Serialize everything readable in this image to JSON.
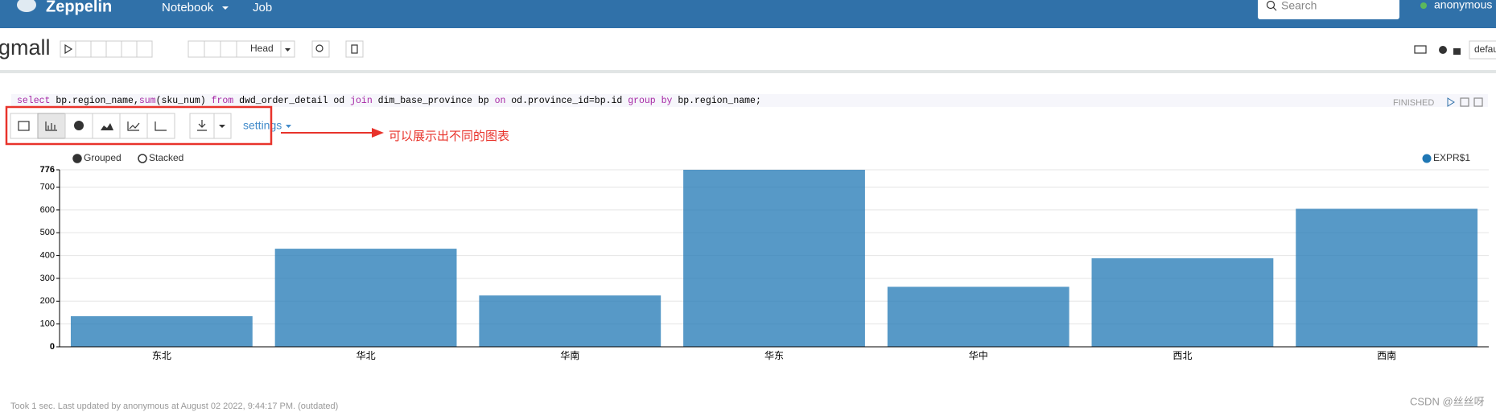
{
  "navbar": {
    "brand": "Zeppelin",
    "menu": [
      "Notebook",
      "Job"
    ],
    "search_placeholder": "Search",
    "user": "anonymous"
  },
  "note": {
    "title": "gmall",
    "head_button": "Head",
    "interpreter": "default"
  },
  "paragraph": {
    "code": [
      "select",
      " bp.region_name,",
      "sum",
      "(sku_num) ",
      "from",
      " dwd_order_detail od ",
      "join",
      " dim_base_province bp ",
      "on",
      " od.province_id=bp.id ",
      "group by",
      " bp.region_name;"
    ],
    "status": "FINISHED",
    "settings": "settings",
    "annotation": "可以展示出不同的图表",
    "footer": "Took 1 sec. Last updated by anonymous at August 02 2022, 9:44:17 PM. (outdated)"
  },
  "watermark": "CSDN @丝丝呀",
  "chart_data": {
    "type": "bar",
    "legend_options": [
      "Grouped",
      "Stacked"
    ],
    "categories": [
      "东北",
      "华北",
      "华南",
      "华东",
      "华中",
      "西北",
      "西南"
    ],
    "series": [
      {
        "name": "EXPR$1",
        "color": "#1f77b4",
        "values": [
          134,
          430,
          225,
          776,
          263,
          388,
          605
        ]
      }
    ],
    "ylim": [
      0,
      776
    ],
    "yticks": [
      0,
      100,
      200,
      300,
      400,
      500,
      600,
      700,
      776
    ],
    "grid": true,
    "legend_position": "top-right"
  }
}
